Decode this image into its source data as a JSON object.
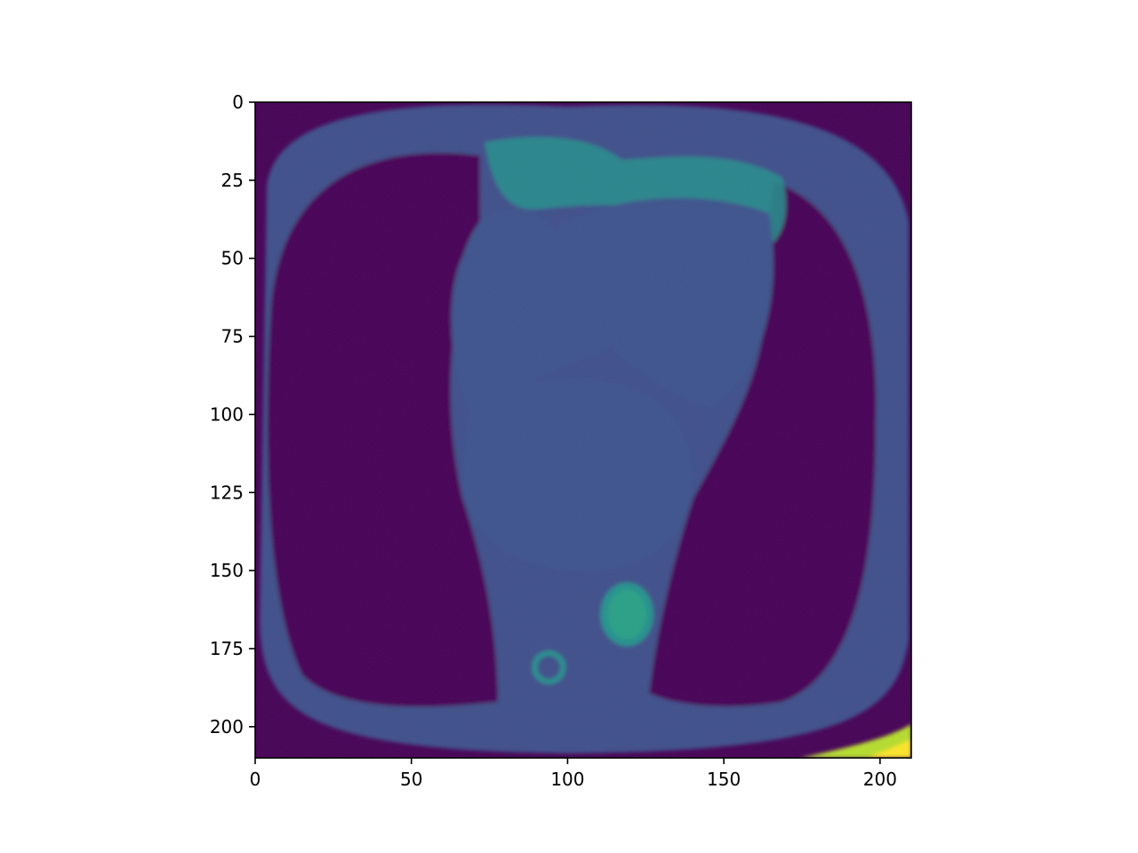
{
  "chart_data": {
    "type": "heatmap",
    "title": "",
    "xlabel": "",
    "ylabel": "",
    "xlim": [
      0,
      210
    ],
    "ylim": [
      210,
      0
    ],
    "x_ticks": [
      0,
      50,
      100,
      150,
      200
    ],
    "y_ticks": [
      0,
      25,
      50,
      75,
      100,
      125,
      150,
      175,
      200
    ],
    "x_tick_labels": [
      "0",
      "50",
      "100",
      "150",
      "200"
    ],
    "y_tick_labels": [
      "0",
      "25",
      "50",
      "75",
      "100",
      "125",
      "150",
      "175",
      "200"
    ],
    "colormap": "viridis",
    "grid": false,
    "legend": "none",
    "colors": {
      "background": "#440154",
      "tissue_low": "#3b528b",
      "tissue_mid": "#2c728e",
      "tissue_high": "#21918c",
      "bright": "#b5de2b",
      "peak": "#fde725"
    }
  }
}
